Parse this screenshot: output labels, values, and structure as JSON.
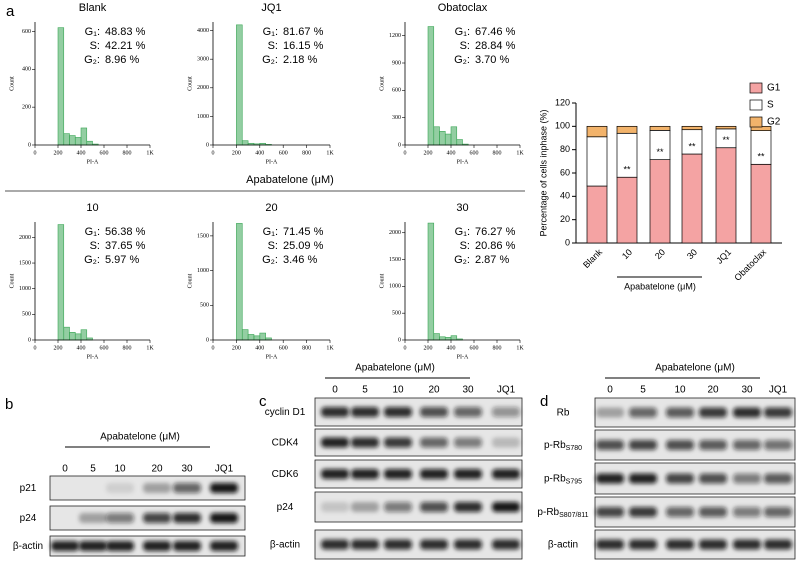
{
  "panel_labels": [
    "a",
    "b",
    "c",
    "d"
  ],
  "flow_group_label": "Apabatelone (μM)",
  "chart_data": [
    {
      "type": "histogram",
      "title": "Blank",
      "x_label": "PI-A",
      "y_label": "Count",
      "color": "#3aa655",
      "bins": [
        0,
        50,
        100,
        150,
        200,
        250,
        300,
        350,
        400,
        450,
        500,
        550,
        600,
        650,
        700,
        750,
        800,
        850,
        900,
        950,
        1000
      ],
      "values": [
        0,
        0,
        0,
        0,
        620,
        60,
        50,
        40,
        90,
        20,
        5,
        0,
        0,
        0,
        0,
        0,
        0,
        0,
        0,
        0
      ],
      "xlim": [
        0,
        1000
      ],
      "xticks": [
        0,
        200,
        400,
        600,
        800,
        {
          "value": 1000,
          "label": "1K"
        }
      ],
      "ylim": [
        0,
        650
      ],
      "yticks": [
        0,
        200,
        400,
        600
      ],
      "stats": [
        {
          "label": "G₁:",
          "value": "48.83 %",
          "color": "#c00000"
        },
        {
          "label": "S:",
          "value": "42.21 %",
          "color": "#000000"
        },
        {
          "label": "G₂:",
          "value": "8.96 %",
          "color": "#000000"
        }
      ]
    },
    {
      "type": "histogram",
      "title": "JQ1",
      "x_label": "PI-A",
      "y_label": "Count",
      "color": "#3aa655",
      "bins": [
        0,
        50,
        100,
        150,
        200,
        250,
        300,
        350,
        400,
        450,
        500,
        550,
        600,
        650,
        700,
        750,
        800,
        850,
        900,
        950,
        1000
      ],
      "values": [
        0,
        0,
        0,
        0,
        4200,
        150,
        60,
        40,
        60,
        20,
        0,
        0,
        0,
        0,
        0,
        0,
        0,
        0,
        0,
        0
      ],
      "xlim": [
        0,
        1000
      ],
      "xticks": [
        0,
        200,
        400,
        600,
        800,
        {
          "value": 1000,
          "label": "1K"
        }
      ],
      "ylim": [
        0,
        4300
      ],
      "yticks": [
        0,
        1000,
        2000,
        3000,
        4000
      ],
      "stats": [
        {
          "label": "G₁:",
          "value": "81.67 %",
          "color": "#c00000"
        },
        {
          "label": "S:",
          "value": "16.15 %",
          "color": "#000000"
        },
        {
          "label": "G₂:",
          "value": "2.18 %",
          "color": "#000000"
        }
      ]
    },
    {
      "type": "histogram",
      "title": "Obatoclax",
      "x_label": "PI-A",
      "y_label": "Count",
      "color": "#3aa655",
      "bins": [
        0,
        50,
        100,
        150,
        200,
        250,
        300,
        350,
        400,
        450,
        500,
        550,
        600,
        650,
        700,
        750,
        800,
        850,
        900,
        950,
        1000
      ],
      "values": [
        0,
        0,
        0,
        0,
        1300,
        200,
        150,
        120,
        200,
        60,
        10,
        0,
        0,
        0,
        0,
        0,
        0,
        0,
        0,
        0
      ],
      "xlim": [
        0,
        1000
      ],
      "xticks": [
        0,
        200,
        400,
        600,
        800,
        {
          "value": 1000,
          "label": "1K"
        }
      ],
      "ylim": [
        0,
        1350
      ],
      "yticks": [
        0,
        300,
        600,
        900,
        1200
      ],
      "stats": [
        {
          "label": "G₁:",
          "value": "67.46 %",
          "color": "#c00000"
        },
        {
          "label": "S:",
          "value": "28.84 %",
          "color": "#000000"
        },
        {
          "label": "G₂:",
          "value": "3.70 %",
          "color": "#000000"
        }
      ]
    },
    {
      "type": "histogram",
      "title": "10",
      "x_label": "PI-A",
      "y_label": "Count",
      "color": "#3aa655",
      "bins": [
        0,
        50,
        100,
        150,
        200,
        250,
        300,
        350,
        400,
        450,
        500,
        550,
        600,
        650,
        700,
        750,
        800,
        850,
        900,
        950,
        1000
      ],
      "values": [
        0,
        0,
        0,
        0,
        2250,
        250,
        150,
        120,
        200,
        40,
        0,
        0,
        0,
        0,
        0,
        0,
        0,
        0,
        0,
        0
      ],
      "xlim": [
        0,
        1000
      ],
      "xticks": [
        0,
        200,
        400,
        600,
        800,
        {
          "value": 1000,
          "label": "1K"
        }
      ],
      "ylim": [
        0,
        2300
      ],
      "yticks": [
        0,
        500,
        1000,
        1500,
        2000
      ],
      "stats": [
        {
          "label": "G₁:",
          "value": "56.38 %",
          "color": "#c00000"
        },
        {
          "label": "S:",
          "value": "37.65 %",
          "color": "#000000"
        },
        {
          "label": "G₂:",
          "value": "5.97 %",
          "color": "#000000"
        }
      ]
    },
    {
      "type": "histogram",
      "title": "20",
      "x_label": "PI-A",
      "y_label": "Count",
      "color": "#3aa655",
      "bins": [
        0,
        50,
        100,
        150,
        200,
        250,
        300,
        350,
        400,
        450,
        500,
        550,
        600,
        650,
        700,
        750,
        800,
        850,
        900,
        950,
        1000
      ],
      "values": [
        0,
        0,
        0,
        0,
        1680,
        150,
        80,
        60,
        100,
        30,
        0,
        0,
        0,
        0,
        0,
        0,
        0,
        0,
        0,
        0
      ],
      "xlim": [
        0,
        1000
      ],
      "xticks": [
        0,
        200,
        400,
        600,
        800,
        {
          "value": 1000,
          "label": "1K"
        }
      ],
      "ylim": [
        0,
        1700
      ],
      "yticks": [
        0,
        500,
        1000,
        1500
      ],
      "stats": [
        {
          "label": "G₁:",
          "value": "71.45 %",
          "color": "#c00000"
        },
        {
          "label": "S:",
          "value": "25.09 %",
          "color": "#000000"
        },
        {
          "label": "G₂:",
          "value": "3.46 %",
          "color": "#000000"
        }
      ]
    },
    {
      "type": "histogram",
      "title": "30",
      "x_label": "PI-A",
      "y_label": "Count",
      "color": "#3aa655",
      "bins": [
        0,
        50,
        100,
        150,
        200,
        250,
        300,
        350,
        400,
        450,
        500,
        550,
        600,
        650,
        700,
        750,
        800,
        850,
        900,
        950,
        1000
      ],
      "values": [
        0,
        0,
        0,
        0,
        2180,
        120,
        60,
        50,
        80,
        20,
        0,
        0,
        0,
        0,
        0,
        0,
        0,
        0,
        0,
        0
      ],
      "xlim": [
        0,
        1000
      ],
      "xticks": [
        0,
        200,
        400,
        600,
        800,
        {
          "value": 1000,
          "label": "1K"
        }
      ],
      "ylim": [
        0,
        2200
      ],
      "yticks": [
        0,
        500,
        1000,
        1500,
        2000
      ],
      "stats": [
        {
          "label": "G₁:",
          "value": "76.27 %",
          "color": "#c00000"
        },
        {
          "label": "S:",
          "value": "20.86 %",
          "color": "#000000"
        },
        {
          "label": "G₂:",
          "value": "2.87 %",
          "color": "#000000"
        }
      ]
    },
    {
      "type": "stacked_bar",
      "y_label": "Percentage of cells inphase (%)",
      "group_label": "Apabatelone (μM)",
      "categories": [
        "Blank",
        "10",
        "20",
        "30",
        "JQ1",
        "Obatoclax"
      ],
      "series": [
        {
          "name": "G1",
          "color": "#f4a3a3",
          "values": [
            48.83,
            56.38,
            71.45,
            76.27,
            81.67,
            67.46
          ]
        },
        {
          "name": "S",
          "color": "#ffffff",
          "values": [
            42.21,
            37.65,
            25.09,
            20.86,
            16.15,
            28.84
          ]
        },
        {
          "name": "G2",
          "color": "#f2b36b",
          "values": [
            8.96,
            5.97,
            3.46,
            2.87,
            2.18,
            3.7
          ]
        }
      ],
      "value_annotations": [
        null,
        "**",
        "**",
        "**",
        "**",
        "**"
      ],
      "ylim": [
        0,
        120
      ],
      "yticks": [
        0,
        20,
        40,
        60,
        80,
        100,
        120
      ],
      "legend": "top-right"
    }
  ],
  "blots": [
    {
      "header": "Apabatelone (μM)",
      "lanes": [
        "0",
        "5",
        "10",
        "20",
        "30",
        "JQ1"
      ],
      "rows": [
        {
          "label": "p21"
        },
        {
          "label": "p24"
        },
        {
          "label": "β-actin"
        }
      ]
    },
    {
      "header": "Apabatelone (μM)",
      "lanes": [
        "0",
        "5",
        "10",
        "20",
        "30",
        "JQ1"
      ],
      "rows": [
        {
          "label": "cyclin D1"
        },
        {
          "label": "CDK4"
        },
        {
          "label": "CDK6"
        },
        {
          "label": "p24"
        },
        {
          "label": "β-actin"
        }
      ]
    },
    {
      "header": "Apabatelone (μM)",
      "lanes": [
        "0",
        "5",
        "10",
        "20",
        "30",
        "JQ1"
      ],
      "rows": [
        {
          "label": "Rb"
        },
        {
          "label": "p-Rb",
          "sub": "S780"
        },
        {
          "label": "p-Rb",
          "sub": "S795"
        },
        {
          "label": "p-Rb",
          "sub": "S807/811"
        },
        {
          "label": "β-actin"
        }
      ]
    }
  ]
}
